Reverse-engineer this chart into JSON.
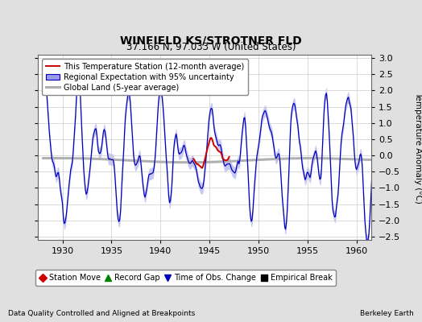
{
  "title": "WINFIELD KS/STROTNER FLD",
  "subtitle": "37.166 N, 97.033 W (United States)",
  "ylabel": "Temperature Anomaly (°C)",
  "xlabel_note": "Data Quality Controlled and Aligned at Breakpoints",
  "credit": "Berkeley Earth",
  "xlim": [
    1927.5,
    1961.5
  ],
  "ylim": [
    -2.6,
    3.1
  ],
  "yticks": [
    -2.5,
    -2.0,
    -1.5,
    -1.0,
    -0.5,
    0.0,
    0.5,
    1.0,
    1.5,
    2.0,
    2.5,
    3.0
  ],
  "xticks": [
    1930,
    1935,
    1940,
    1945,
    1950,
    1955,
    1960
  ],
  "bg_color": "#e0e0e0",
  "plot_bg_color": "#ffffff",
  "blue_line_color": "#0000bb",
  "blue_fill_color": "#9999ee",
  "red_line_color": "#cc0000",
  "gray_line_color": "#b0b0b0",
  "title_fontsize": 10,
  "subtitle_fontsize": 8.5,
  "tick_fontsize": 8,
  "legend_fontsize": 7,
  "bottom_legend_items": [
    {
      "label": "Station Move",
      "color": "#cc0000",
      "marker": "D"
    },
    {
      "label": "Record Gap",
      "color": "#008000",
      "marker": "^"
    },
    {
      "label": "Time of Obs. Change",
      "color": "#0000bb",
      "marker": "v"
    },
    {
      "label": "Empirical Break",
      "color": "#000000",
      "marker": "s"
    }
  ]
}
